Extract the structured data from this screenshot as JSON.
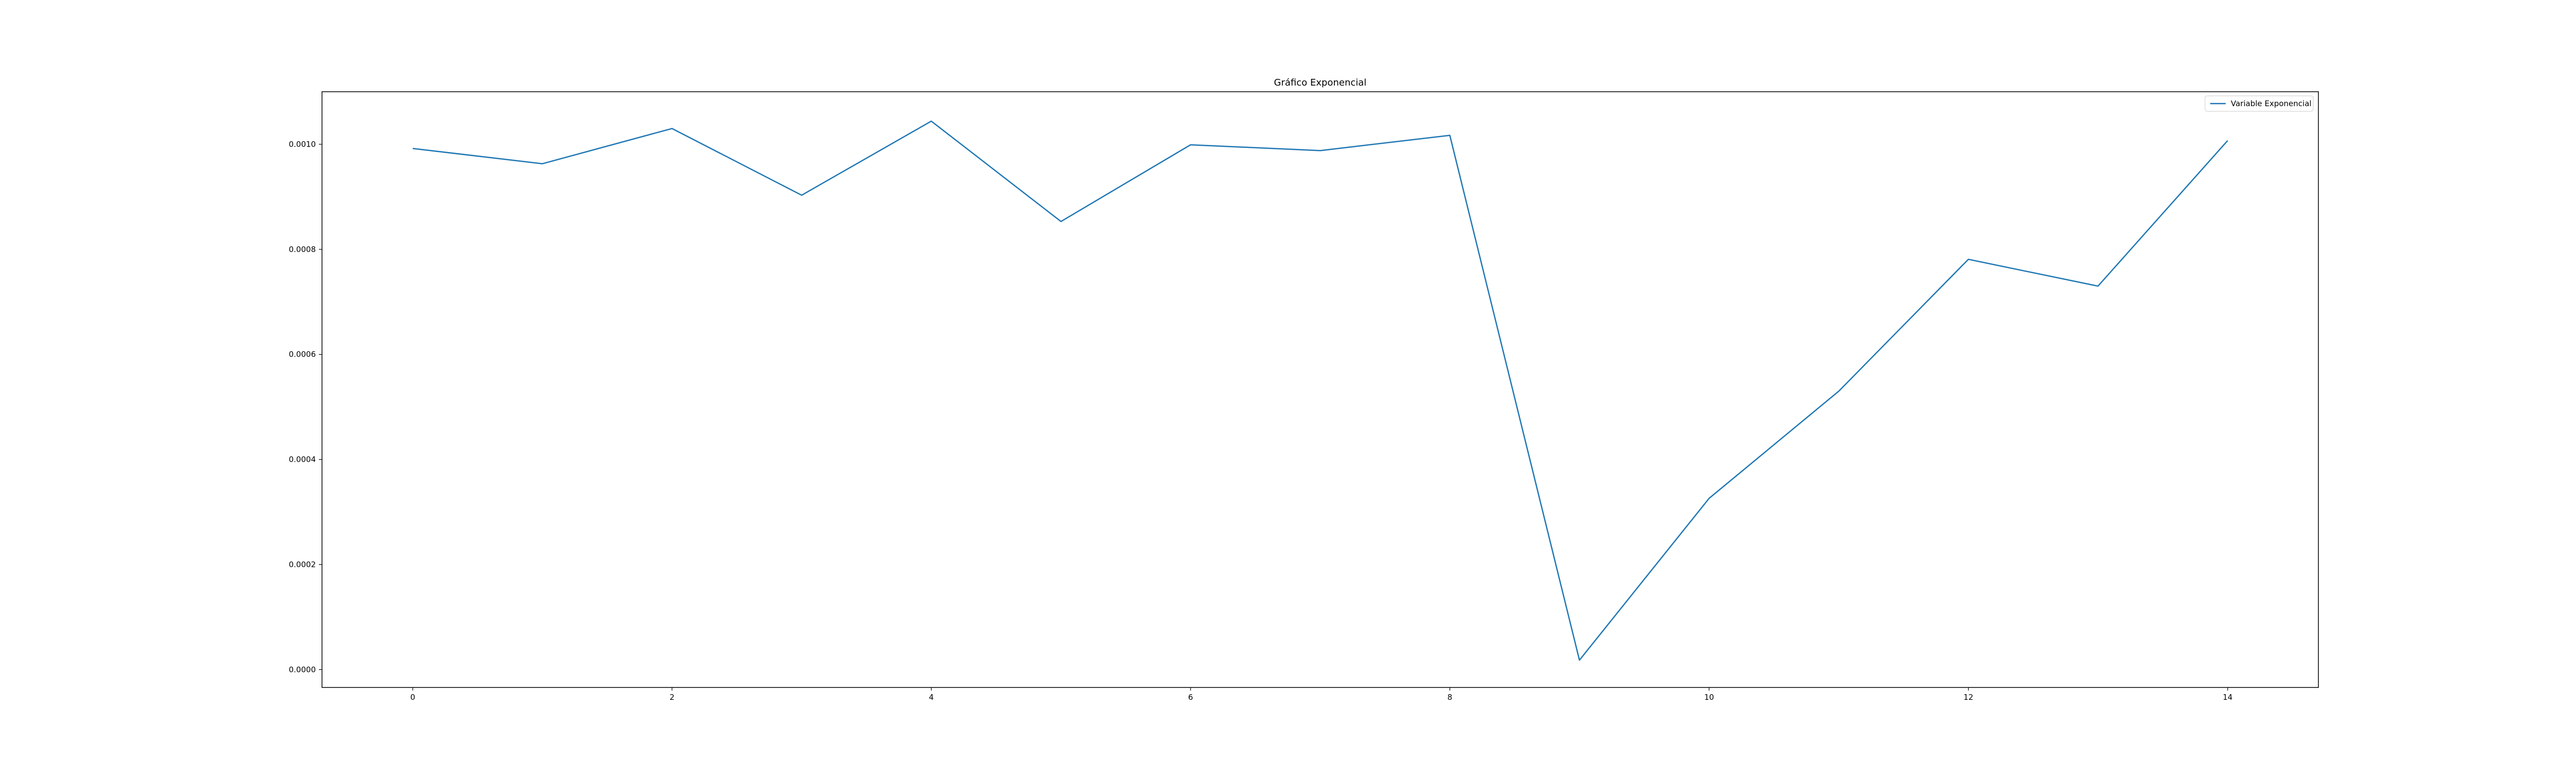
{
  "chart_data": {
    "type": "line",
    "title": "Gráfico Exponencial",
    "xlabel": "",
    "ylabel": "",
    "x": [
      0,
      1,
      2,
      3,
      4,
      5,
      6,
      7,
      8,
      9,
      10,
      11,
      12,
      13,
      14
    ],
    "series": [
      {
        "name": "Variable Exponencial",
        "color": "#1f77b4",
        "values": [
          0.000992,
          0.000963,
          0.00103,
          0.000903,
          0.001044,
          0.000853,
          0.000999,
          0.000988,
          0.001017,
          1.8e-05,
          0.000326,
          0.00053,
          0.000781,
          0.00073,
          0.001007
        ]
      }
    ],
    "xlim": [
      -0.7,
      14.7
    ],
    "ylim": [
      -3.4e-05,
      0.0011
    ],
    "xticks": [
      0,
      2,
      4,
      6,
      8,
      10,
      12,
      14
    ],
    "xtick_labels": [
      "0",
      "2",
      "4",
      "6",
      "8",
      "10",
      "12",
      "14"
    ],
    "yticks": [
      0,
      0.0002,
      0.0004,
      0.0006,
      0.0008,
      0.001
    ],
    "ytick_labels": [
      "0.0000",
      "0.0002",
      "0.0004",
      "0.0006",
      "0.0008",
      "0.0010"
    ],
    "grid": false,
    "legend_position": "top-right"
  }
}
